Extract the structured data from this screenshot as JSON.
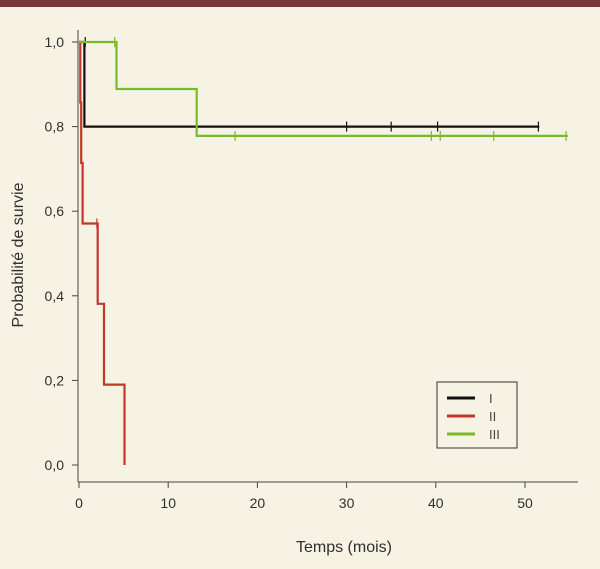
{
  "chart_data": {
    "type": "line",
    "xlabel": "Temps (mois)",
    "ylabel": "Probabilité de survie",
    "xlim": [
      0,
      56
    ],
    "ylim": [
      0,
      1.0
    ],
    "x_ticks": [
      0,
      10,
      20,
      30,
      40,
      50
    ],
    "x_tick_labels": [
      "0",
      "10",
      "20",
      "30",
      "40",
      "50"
    ],
    "y_ticks": [
      0,
      0.2,
      0.4,
      0.6,
      0.8,
      1.0
    ],
    "y_tick_labels": [
      "0,0",
      "0,2",
      "0,4",
      "0,6",
      "0,8",
      "1,0"
    ],
    "grid": false,
    "legend_position": "bottom-right",
    "series": [
      {
        "name": "I",
        "color": "#111111",
        "points": [
          [
            0,
            1.0
          ],
          [
            0.6,
            1.0
          ],
          [
            0.6,
            0.8
          ],
          [
            51.6,
            0.8
          ]
        ],
        "censored": [
          [
            0.7,
            1.0
          ],
          [
            30,
            0.8
          ],
          [
            35,
            0.8
          ],
          [
            40.2,
            0.8
          ],
          [
            51.5,
            0.8
          ]
        ]
      },
      {
        "name": "II",
        "color": "#c0392b",
        "points": [
          [
            0,
            1.0
          ],
          [
            0.15,
            1.0
          ],
          [
            0.15,
            0.857
          ],
          [
            0.25,
            0.857
          ],
          [
            0.25,
            0.714
          ],
          [
            0.4,
            0.714
          ],
          [
            0.4,
            0.571
          ],
          [
            2.1,
            0.571
          ],
          [
            2.1,
            0.381
          ],
          [
            2.8,
            0.381
          ],
          [
            2.8,
            0.19
          ],
          [
            5.1,
            0.19
          ],
          [
            5.1,
            0
          ]
        ],
        "censored": [
          [
            2.0,
            0.571
          ]
        ]
      },
      {
        "name": "III",
        "color": "#7ab82e",
        "points": [
          [
            0,
            1.0
          ],
          [
            4.2,
            1.0
          ],
          [
            4.2,
            0.889
          ],
          [
            13.2,
            0.889
          ],
          [
            13.2,
            0.778
          ],
          [
            54.8,
            0.778
          ]
        ],
        "censored": [
          [
            4.0,
            1.0
          ],
          [
            17.5,
            0.778
          ],
          [
            39.5,
            0.778
          ],
          [
            40.5,
            0.778
          ],
          [
            46.5,
            0.778
          ],
          [
            54.6,
            0.778
          ]
        ]
      }
    ]
  }
}
